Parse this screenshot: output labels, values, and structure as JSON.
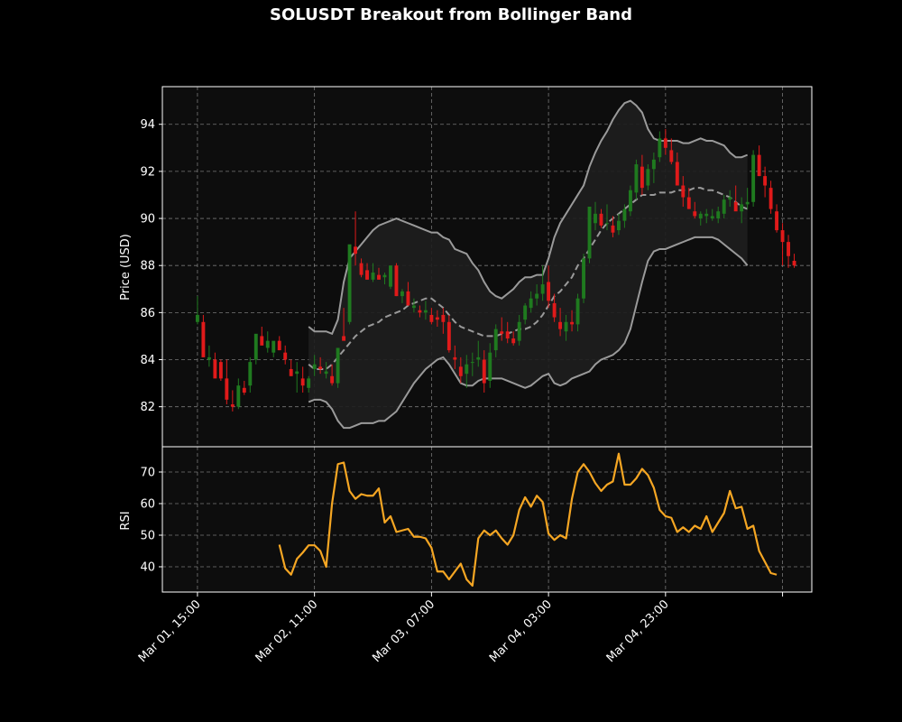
{
  "chart_data": {
    "type": "candlestick",
    "title": "SOLUSDT Breakout from Bollinger Band",
    "x_unit": "hours",
    "x_ticks": [
      "Mar 01, 15:00",
      "Mar 02, 11:00",
      "Mar 03, 07:00",
      "Mar 04, 03:00",
      "Mar 04, 23:00",
      ""
    ],
    "x_tick_hours": [
      0,
      20,
      40,
      60,
      80,
      100
    ],
    "xlim": [
      -6,
      105
    ],
    "grid": true,
    "colors": {
      "background": "#000000",
      "panel": "#0d0d0d",
      "up": "#1f7a1f",
      "down": "#e01a1a",
      "band": "#9a9a9a",
      "band_fill": "#1e1e1e",
      "middle": "#9a9a9a",
      "rsi": "#f5a623",
      "grid": "#9a9a9a"
    },
    "price_panel": {
      "ylabel": "Price (USD)",
      "ylim": [
        80.3,
        95.6
      ],
      "yticks": [
        82,
        84,
        86,
        88,
        90,
        92,
        94
      ]
    },
    "rsi_panel": {
      "ylabel": "RSI",
      "ylim": [
        32,
        78
      ],
      "yticks": [
        40,
        50,
        60,
        70
      ]
    },
    "candles_ohlc": [
      [
        85.6,
        86.7,
        85.5,
        85.9
      ],
      [
        85.6,
        85.9,
        84.2,
        84.1
      ],
      [
        84.0,
        84.6,
        83.7,
        84.1
      ],
      [
        84.0,
        84.3,
        83.3,
        83.2
      ],
      [
        83.9,
        84.0,
        83.1,
        83.2
      ],
      [
        83.2,
        84.0,
        82.1,
        82.3
      ],
      [
        82.1,
        82.7,
        81.8,
        82.0
      ],
      [
        82.0,
        83.2,
        81.9,
        82.9
      ],
      [
        82.8,
        83.1,
        82.5,
        82.6
      ],
      [
        82.9,
        84.1,
        82.6,
        83.9
      ],
      [
        84.0,
        84.5,
        83.8,
        85.1
      ],
      [
        85.0,
        85.4,
        84.9,
        84.6
      ],
      [
        84.5,
        85.2,
        84.3,
        84.8
      ],
      [
        84.3,
        84.6,
        84.1,
        84.8
      ],
      [
        84.8,
        85.0,
        84.4,
        84.4
      ],
      [
        84.3,
        84.6,
        83.8,
        84.0
      ],
      [
        83.6,
        84.0,
        83.3,
        83.3
      ],
      [
        83.4,
        83.9,
        82.6,
        83.5
      ],
      [
        83.2,
        83.7,
        82.6,
        82.9
      ],
      [
        82.8,
        83.3,
        82.6,
        83.2
      ],
      [
        83.6,
        84.2,
        83.3,
        83.8
      ],
      [
        83.7,
        84.1,
        83.4,
        83.6
      ],
      [
        83.4,
        83.9,
        83.2,
        83.5
      ],
      [
        83.3,
        83.8,
        82.9,
        83.0
      ],
      [
        83.0,
        84.3,
        82.8,
        84.5
      ],
      [
        85.0,
        86.2,
        84.9,
        84.8
      ],
      [
        85.6,
        88.8,
        85.5,
        88.9
      ],
      [
        88.8,
        90.3,
        88.0,
        88.5
      ],
      [
        88.1,
        88.3,
        87.5,
        87.6
      ],
      [
        87.8,
        88.1,
        87.4,
        87.4
      ],
      [
        87.4,
        88.1,
        87.3,
        87.7
      ],
      [
        87.6,
        87.9,
        87.4,
        87.4
      ],
      [
        87.5,
        87.7,
        87.2,
        87.6
      ],
      [
        87.1,
        88.0,
        87.0,
        88.0
      ],
      [
        88.0,
        88.1,
        86.7,
        86.7
      ],
      [
        86.7,
        87.0,
        86.4,
        86.9
      ],
      [
        86.9,
        87.3,
        86.5,
        86.3
      ],
      [
        86.2,
        86.6,
        86.0,
        86.3
      ],
      [
        86.1,
        86.3,
        85.8,
        86.0
      ],
      [
        86.0,
        86.5,
        85.7,
        86.1
      ],
      [
        85.9,
        86.2,
        85.5,
        85.6
      ],
      [
        85.8,
        86.1,
        85.4,
        85.7
      ],
      [
        85.9,
        86.2,
        85.1,
        85.6
      ],
      [
        85.6,
        85.9,
        84.3,
        84.4
      ],
      [
        84.1,
        84.6,
        83.6,
        84.0
      ],
      [
        83.7,
        84.1,
        83.0,
        83.3
      ],
      [
        83.4,
        84.2,
        82.8,
        83.8
      ],
      [
        83.9,
        84.3,
        83.3,
        83.9
      ],
      [
        84.0,
        84.8,
        83.7,
        84.1
      ],
      [
        84.0,
        84.4,
        82.6,
        83.0
      ],
      [
        83.1,
        84.7,
        82.8,
        84.3
      ],
      [
        84.4,
        85.5,
        84.1,
        85.3
      ],
      [
        85.2,
        85.8,
        84.8,
        85.1
      ],
      [
        85.2,
        85.6,
        84.7,
        84.9
      ],
      [
        84.9,
        85.2,
        84.6,
        84.7
      ],
      [
        84.8,
        85.9,
        84.6,
        85.6
      ],
      [
        85.7,
        86.4,
        85.5,
        86.3
      ],
      [
        86.2,
        86.9,
        86.0,
        86.6
      ],
      [
        86.6,
        87.2,
        86.3,
        86.8
      ],
      [
        86.8,
        88.0,
        86.5,
        87.2
      ],
      [
        87.3,
        88.0,
        86.2,
        86.5
      ],
      [
        86.4,
        86.8,
        85.6,
        85.8
      ],
      [
        85.6,
        86.2,
        85.0,
        85.3
      ],
      [
        85.2,
        85.9,
        84.8,
        85.6
      ],
      [
        85.6,
        86.1,
        85.2,
        85.5
      ],
      [
        85.5,
        86.8,
        85.2,
        86.6
      ],
      [
        86.6,
        88.5,
        86.4,
        88.3
      ],
      [
        88.3,
        90.2,
        88.1,
        90.5
      ],
      [
        89.8,
        90.7,
        89.5,
        90.2
      ],
      [
        90.2,
        90.4,
        89.6,
        89.7
      ],
      [
        89.8,
        90.6,
        89.5,
        89.8
      ],
      [
        89.7,
        90.1,
        89.2,
        89.4
      ],
      [
        89.5,
        90.2,
        89.3,
        89.9
      ],
      [
        89.9,
        90.6,
        89.6,
        90.4
      ],
      [
        90.3,
        91.4,
        90.1,
        91.2
      ],
      [
        91.1,
        92.5,
        90.8,
        92.3
      ],
      [
        92.2,
        92.7,
        91.0,
        91.3
      ],
      [
        91.4,
        92.3,
        91.2,
        92.1
      ],
      [
        92.1,
        92.8,
        91.5,
        92.5
      ],
      [
        92.6,
        93.7,
        92.4,
        93.4
      ],
      [
        93.4,
        93.8,
        92.7,
        93.0
      ],
      [
        92.9,
        93.4,
        92.3,
        92.4
      ],
      [
        92.4,
        92.8,
        91.7,
        91.4
      ],
      [
        91.4,
        91.8,
        90.5,
        90.9
      ],
      [
        90.9,
        91.3,
        90.4,
        90.4
      ],
      [
        90.3,
        90.7,
        90.0,
        90.1
      ],
      [
        90.0,
        90.3,
        89.7,
        90.2
      ],
      [
        90.1,
        90.4,
        89.8,
        90.2
      ],
      [
        90.0,
        90.4,
        89.9,
        90.1
      ],
      [
        90.0,
        90.5,
        89.8,
        90.3
      ],
      [
        90.2,
        91.0,
        90.0,
        90.8
      ],
      [
        90.8,
        91.2,
        90.5,
        90.9
      ],
      [
        90.7,
        91.4,
        90.4,
        90.3
      ],
      [
        90.3,
        90.9,
        89.8,
        90.6
      ],
      [
        90.6,
        91.3,
        90.4,
        90.7
      ],
      [
        90.7,
        92.9,
        90.5,
        92.7
      ],
      [
        92.7,
        93.1,
        91.8,
        91.8
      ],
      [
        91.8,
        92.2,
        90.9,
        91.4
      ],
      [
        91.3,
        91.6,
        90.2,
        90.4
      ],
      [
        90.3,
        90.6,
        89.4,
        89.5
      ],
      [
        89.5,
        89.8,
        88.0,
        89.0
      ],
      [
        89.0,
        89.3,
        87.9,
        88.4
      ],
      [
        88.2,
        88.5,
        87.9,
        88.0
      ]
    ],
    "bollinger": {
      "start_hour": 19,
      "upper": [
        85.4,
        85.2,
        85.2,
        85.2,
        85.1,
        85.7,
        87.3,
        88.3,
        88.6,
        88.9,
        89.2,
        89.5,
        89.7,
        89.8,
        89.9,
        90.0,
        89.9,
        89.8,
        89.7,
        89.6,
        89.5,
        89.4,
        89.4,
        89.2,
        89.1,
        88.7,
        88.6,
        88.5,
        88.1,
        87.8,
        87.3,
        86.9,
        86.7,
        86.6,
        86.8,
        87.0,
        87.3,
        87.5,
        87.5,
        87.6,
        87.6,
        88.3,
        89.2,
        89.8,
        90.2,
        90.6,
        91.0,
        91.4,
        92.2,
        92.8,
        93.3,
        93.7,
        94.2,
        94.6,
        94.9,
        95.0,
        94.8,
        94.5,
        93.8,
        93.4,
        93.3,
        93.3,
        93.3,
        93.3,
        93.2,
        93.2,
        93.3,
        93.4,
        93.3,
        93.3,
        93.2,
        93.1,
        92.8,
        92.6,
        92.6,
        92.7
      ],
      "middle": [
        83.8,
        83.6,
        83.6,
        83.6,
        83.8,
        84.1,
        84.4,
        84.7,
        85.0,
        85.2,
        85.4,
        85.5,
        85.6,
        85.8,
        85.9,
        86.0,
        86.1,
        86.3,
        86.4,
        86.5,
        86.6,
        86.6,
        86.4,
        86.2,
        85.9,
        85.6,
        85.4,
        85.3,
        85.2,
        85.1,
        85.0,
        85.0,
        85.0,
        85.1,
        85.1,
        85.2,
        85.3,
        85.3,
        85.4,
        85.6,
        85.9,
        86.3,
        86.7,
        86.9,
        87.2,
        87.5,
        88.0,
        88.3,
        88.7,
        89.1,
        89.5,
        89.8,
        90.0,
        90.2,
        90.4,
        90.6,
        90.8,
        91.0,
        91.0,
        91.0,
        91.1,
        91.1,
        91.1,
        91.2,
        91.2,
        91.2,
        91.3,
        91.3,
        91.2,
        91.2,
        91.1,
        91.0,
        90.9,
        90.7,
        90.5,
        90.4
      ],
      "lower": [
        82.2,
        82.3,
        82.3,
        82.2,
        81.9,
        81.4,
        81.1,
        81.1,
        81.2,
        81.3,
        81.3,
        81.3,
        81.4,
        81.4,
        81.6,
        81.8,
        82.2,
        82.6,
        83.0,
        83.3,
        83.6,
        83.8,
        84.0,
        84.1,
        83.8,
        83.4,
        83.0,
        82.9,
        82.9,
        83.1,
        83.2,
        83.2,
        83.2,
        83.2,
        83.1,
        83.0,
        82.9,
        82.8,
        82.9,
        83.1,
        83.3,
        83.4,
        83.0,
        82.9,
        83.0,
        83.2,
        83.3,
        83.4,
        83.5,
        83.8,
        84.0,
        84.1,
        84.2,
        84.4,
        84.7,
        85.3,
        86.3,
        87.3,
        88.2,
        88.6,
        88.7,
        88.7,
        88.8,
        88.9,
        89.0,
        89.1,
        89.2,
        89.2,
        89.2,
        89.2,
        89.1,
        88.9,
        88.7,
        88.5,
        88.3,
        88.0
      ]
    },
    "rsi": {
      "start_hour": 14,
      "values": [
        47.0,
        39.5,
        37.5,
        42.5,
        44.5,
        46.8,
        46.8,
        45.0,
        40.0,
        60.0,
        72.5,
        73.0,
        64.0,
        61.5,
        63.0,
        62.5,
        62.5,
        64.8,
        54.0,
        56.0,
        51.0,
        51.5,
        52.0,
        49.5,
        49.5,
        49.0,
        46.0,
        38.5,
        38.5,
        36.0,
        38.5,
        41.0,
        36.0,
        34.0,
        49.0,
        51.5,
        50.0,
        51.5,
        49.0,
        47.0,
        50.0,
        58.0,
        62.0,
        59.0,
        62.5,
        60.5,
        50.5,
        48.5,
        50.0,
        49.0,
        61.5,
        70.0,
        72.5,
        70.0,
        66.5,
        64.0,
        66.0,
        67.0,
        75.8,
        66.0,
        66.0,
        68.0,
        71.0,
        69.0,
        65.0,
        58.0,
        56.0,
        55.5,
        51.0,
        52.5,
        51.0,
        53.0,
        52.0,
        56.0,
        51.0,
        54.0,
        57.0,
        64.0,
        58.5,
        59.0,
        52.0,
        53.0,
        45.0,
        41.5,
        38.0,
        37.5
      ]
    }
  }
}
